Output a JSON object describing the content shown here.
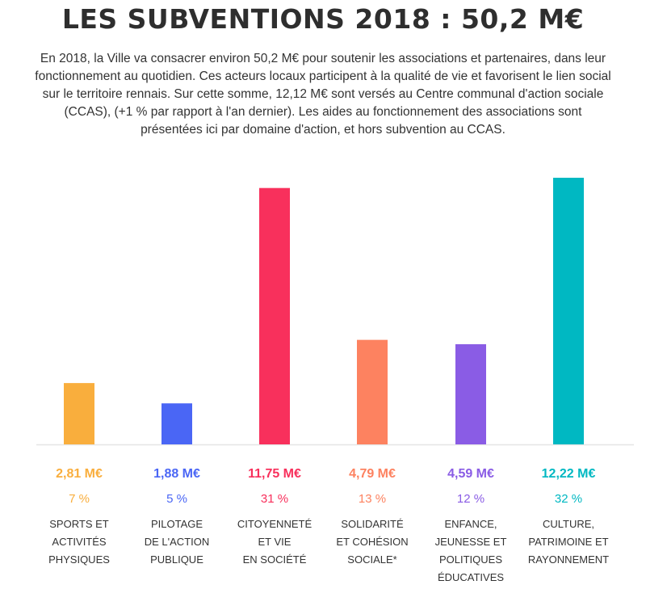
{
  "header": {
    "title": "LES SUBVENTIONS 2018 : 50,2 M€",
    "intro": "En 2018, la Ville va consacrer environ 50,2 M€ pour soutenir les associations et partenaires, dans leur fonctionnement au quotidien. Ces acteurs locaux participent à la qualité de vie et favorisent le lien social sur le territoire rennais. Sur cette somme, 12,12 M€ sont versés au Centre communal d'action sociale (CCAS), (+1 % par rapport à l'an dernier). Les aides au fonctionnement des associations sont présentées ici par domaine d'action, et hors subvention au CCAS."
  },
  "chart_data": {
    "type": "bar",
    "title": "LES SUBVENTIONS 2018 : 50,2 M€",
    "xlabel": "",
    "ylabel": "",
    "grid": false,
    "ylim": [
      0,
      12.22
    ],
    "categories": [
      [
        "SPORTS ET",
        "ACTIVITÉS",
        "PHYSIQUES"
      ],
      [
        "PILOTAGE",
        "DE L'ACTION",
        "PUBLIQUE"
      ],
      [
        "CITOYENNETÉ",
        "ET VIE",
        "EN SOCIÉTÉ"
      ],
      [
        "SOLIDARITÉ",
        "ET COHÉSION",
        "SOCIALE*"
      ],
      [
        "ENFANCE,",
        "JEUNESSE ET",
        "POLITIQUES",
        "ÉDUCATIVES"
      ],
      [
        "CULTURE,",
        "PATRIMOINE ET",
        "RAYONNEMENT"
      ]
    ],
    "values": [
      2.81,
      1.88,
      11.75,
      4.79,
      4.59,
      12.22
    ],
    "value_labels": [
      "2,81 M€",
      "1,88 M€",
      "11,75 M€",
      "4,79 M€",
      "4,59 M€",
      "12,22 M€"
    ],
    "percent_labels": [
      "7 %",
      "5 %",
      "31 %",
      "13 %",
      "12 %",
      "32 %"
    ],
    "colors": [
      "#f9ae3d",
      "#4a66f5",
      "#f8305c",
      "#fd8260",
      "#8a5ce5",
      "#00b8c2"
    ],
    "percent_colors": [
      "#f9ae3d",
      "#4a66f5",
      "#f8305c",
      "#fd8260",
      "#8a5ce5",
      "#00b8c2"
    ],
    "baseline_color": "#e6e6e6"
  }
}
